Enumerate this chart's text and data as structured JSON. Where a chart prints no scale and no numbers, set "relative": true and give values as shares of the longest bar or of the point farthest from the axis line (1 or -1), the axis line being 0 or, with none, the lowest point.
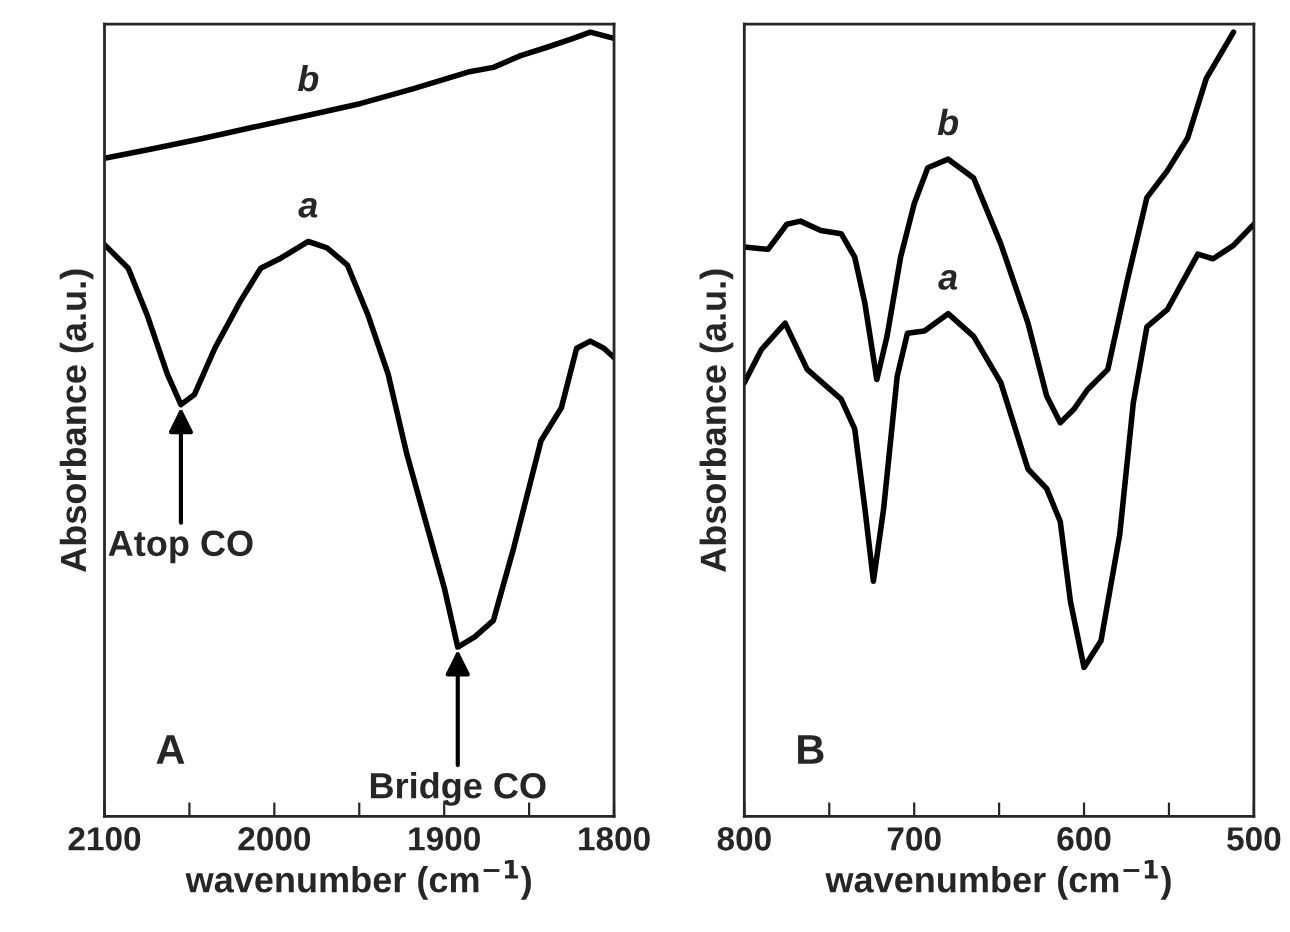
{
  "chart_data": [
    {
      "type": "line",
      "relative": true,
      "xlabel": "wavenumber (cm$^{−1}$)",
      "ylabel": "Absorbance (a.u.)",
      "xlim": [
        2100,
        1800
      ],
      "xticks": [
        2100,
        {
          "value": 2050,
          "label": null
        },
        2000,
        {
          "value": 1950,
          "label": null
        },
        1900,
        {
          "value": 1850,
          "label": null
        },
        1800
      ],
      "tick_labels": "x",
      "grid": false,
      "legend": false,
      "annotations": [
        {
          "text": "Atop CO",
          "x": 2055,
          "y": 0.525
        },
        {
          "text": "Bridge CO",
          "x": 1892,
          "y": 0.216
        },
        "A"
      ],
      "series": [
        {
          "name": "b",
          "color": "#000000",
          "x": [
            2100,
            2074.5,
            2043,
            2012,
            1980,
            1949,
            1918,
            1886,
            1871,
            1855,
            1839,
            1824,
            1814,
            1800
          ],
          "values": [
            0.839,
            0.85,
            0.864,
            0.879,
            0.894,
            0.909,
            0.928,
            0.949,
            0.955,
            0.97,
            0.981,
            0.992,
            1.0,
            0.992
          ]
        },
        {
          "name": "a",
          "color": "#000000",
          "x": [
            2100,
            2086,
            2075,
            2063,
            2055,
            2047,
            2035,
            2020,
            2008,
            1996,
            1980,
            1969,
            1957,
            1945,
            1933,
            1922,
            1910,
            1900,
            1892,
            1882,
            1871,
            1859,
            1843,
            1831,
            1822,
            1814,
            1806,
            1800
          ],
          "values": [
            0.729,
            0.699,
            0.64,
            0.564,
            0.525,
            0.538,
            0.597,
            0.657,
            0.699,
            0.712,
            0.733,
            0.725,
            0.703,
            0.64,
            0.564,
            0.462,
            0.369,
            0.292,
            0.216,
            0.229,
            0.25,
            0.343,
            0.479,
            0.521,
            0.597,
            0.606,
            0.597,
            0.585
          ]
        }
      ]
    },
    {
      "type": "line",
      "relative": true,
      "xlabel": "wavenumber (cm$^{−1}$)",
      "ylabel": "Absorbance (a.u.)",
      "xlim": [
        800,
        500
      ],
      "xticks": [
        800,
        {
          "value": 750,
          "label": null
        },
        700,
        {
          "value": 650,
          "label": null
        },
        600,
        {
          "value": 550,
          "label": null
        },
        500
      ],
      "tick_labels": "x",
      "grid": false,
      "legend": false,
      "annotations": [
        "B"
      ],
      "series": [
        {
          "name": "b",
          "color": "#000000",
          "x": [
            800,
            786,
            775,
            767,
            755,
            743,
            735,
            729,
            722,
            716,
            708,
            700,
            692,
            680,
            665,
            649,
            633,
            622,
            614,
            606,
            598,
            586,
            575,
            563,
            551,
            539,
            528,
            512
          ],
          "values": [
            0.726,
            0.723,
            0.755,
            0.759,
            0.747,
            0.743,
            0.713,
            0.654,
            0.557,
            0.612,
            0.713,
            0.781,
            0.827,
            0.838,
            0.814,
            0.73,
            0.629,
            0.536,
            0.502,
            0.519,
            0.544,
            0.57,
            0.679,
            0.789,
            0.823,
            0.865,
            0.941,
            1.0
          ]
        },
        {
          "name": "a",
          "color": "#000000",
          "x": [
            800,
            790,
            776,
            763,
            743,
            735,
            729,
            724,
            718,
            710,
            704,
            694,
            680,
            665,
            649,
            633,
            622,
            614,
            608,
            600,
            590,
            579,
            571,
            563,
            551,
            533,
            524,
            512,
            500
          ],
          "values": [
            0.553,
            0.595,
            0.629,
            0.57,
            0.532,
            0.494,
            0.392,
            0.3,
            0.392,
            0.561,
            0.616,
            0.619,
            0.641,
            0.612,
            0.553,
            0.443,
            0.418,
            0.376,
            0.274,
            0.19,
            0.224,
            0.359,
            0.527,
            0.624,
            0.646,
            0.717,
            0.711,
            0.728,
            0.755
          ]
        }
      ]
    }
  ]
}
